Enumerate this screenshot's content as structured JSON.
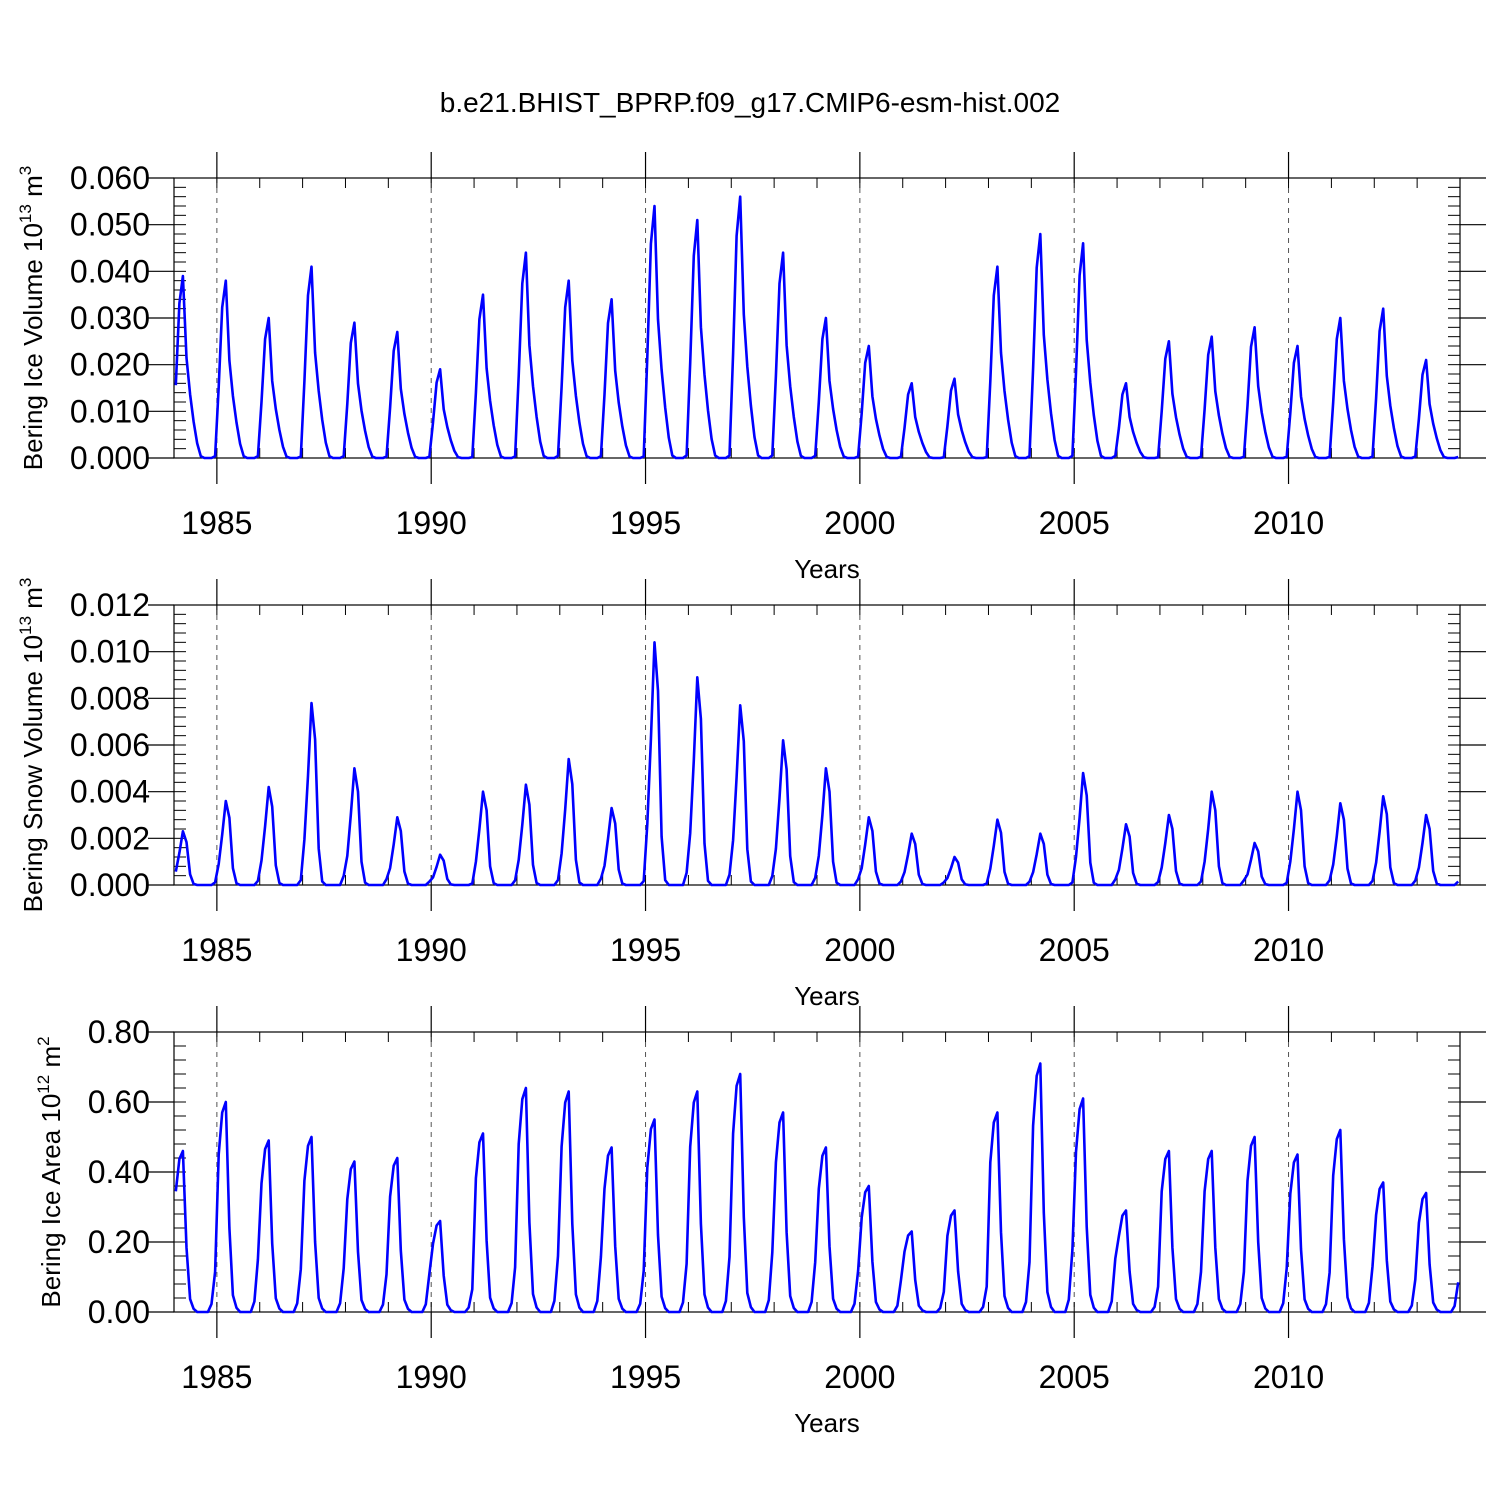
{
  "title": "b.e21.BHIST_BPRP.f09_g17.CMIP6-esm-hist.002",
  "colors": {
    "series": "#0000ff",
    "axis": "#000000",
    "refline": "#555555"
  },
  "chart_data": [
    {
      "type": "line",
      "ylabel": {
        "main": "Bering Ice Volume 10",
        "sup1": "13",
        "mid": " m",
        "sup2": "3"
      },
      "xlabel": "Years",
      "ylim": [
        0,
        0.06
      ],
      "yticks": [
        0,
        0.01,
        0.02,
        0.03,
        0.04,
        0.05,
        0.06
      ],
      "ytick_labels": [
        "0.000",
        "0.010",
        "0.020",
        "0.030",
        "0.040",
        "0.050",
        "0.060"
      ],
      "xlim": [
        1984.0,
        2014.0
      ],
      "xticks": [
        1985,
        1990,
        1995,
        2000,
        2005,
        2010
      ],
      "xtick_labels": [
        "1985",
        "1990",
        "1995",
        "2000",
        "2005",
        "2010"
      ],
      "peaks": [
        0.039,
        0.038,
        0.03,
        0.041,
        0.029,
        0.027,
        0.019,
        0.035,
        0.044,
        0.038,
        0.034,
        0.054,
        0.051,
        0.056,
        0.044,
        0.03,
        0.024,
        0.016,
        0.017,
        0.041,
        0.048,
        0.046,
        0.016,
        0.025,
        0.026,
        0.028,
        0.024,
        0.03,
        0.032,
        0.021
      ],
      "shape": [
        0.4,
        0.85,
        1.0,
        0.55,
        0.35,
        0.2,
        0.08,
        0.01,
        0,
        0,
        0,
        0.01
      ]
    },
    {
      "type": "line",
      "ylabel": {
        "main": "Bering Snow Volume 10",
        "sup1": "13",
        "mid": " m",
        "sup2": "3"
      },
      "xlabel": "Years",
      "ylim": [
        0,
        0.012
      ],
      "yticks": [
        0,
        0.002,
        0.004,
        0.006,
        0.008,
        0.01,
        0.012
      ],
      "ytick_labels": [
        "0.000",
        "0.002",
        "0.004",
        "0.006",
        "0.008",
        "0.010",
        "0.012"
      ],
      "xlim": [
        1984.0,
        2014.0
      ],
      "xticks": [
        1985,
        1990,
        1995,
        2000,
        2005,
        2010
      ],
      "xtick_labels": [
        "1985",
        "1990",
        "1995",
        "2000",
        "2005",
        "2010"
      ],
      "peaks": [
        0.0023,
        0.0036,
        0.0042,
        0.0078,
        0.005,
        0.0029,
        0.0013,
        0.004,
        0.0043,
        0.0054,
        0.0033,
        0.0104,
        0.0089,
        0.0077,
        0.0062,
        0.005,
        0.0029,
        0.0022,
        0.0012,
        0.0028,
        0.0022,
        0.0048,
        0.0026,
        0.003,
        0.004,
        0.0018,
        0.004,
        0.0035,
        0.0038,
        0.003
      ],
      "shape": [
        0.25,
        0.6,
        1.0,
        0.8,
        0.2,
        0.02,
        0,
        0,
        0,
        0,
        0,
        0.05
      ]
    },
    {
      "type": "line",
      "ylabel": {
        "main": "Bering Ice Area 10",
        "sup1": "12",
        "mid": " m",
        "sup2": "2"
      },
      "xlabel": "Years",
      "ylim": [
        0,
        0.8
      ],
      "yticks": [
        0,
        0.2,
        0.4,
        0.6,
        0.8
      ],
      "ytick_labels": [
        "0.00",
        "0.20",
        "0.40",
        "0.60",
        "0.80"
      ],
      "xlim": [
        1984.0,
        2014.0
      ],
      "xticks": [
        1985,
        1990,
        1995,
        2000,
        2005,
        2010
      ],
      "xtick_labels": [
        "1985",
        "1990",
        "1995",
        "2000",
        "2005",
        "2010"
      ],
      "peaks": [
        0.46,
        0.6,
        0.49,
        0.5,
        0.43,
        0.44,
        0.26,
        0.51,
        0.64,
        0.63,
        0.47,
        0.55,
        0.63,
        0.68,
        0.57,
        0.47,
        0.36,
        0.23,
        0.29,
        0.57,
        0.71,
        0.61,
        0.29,
        0.46,
        0.46,
        0.5,
        0.45,
        0.52,
        0.37,
        0.34
      ],
      "shape": [
        0.75,
        0.95,
        1.0,
        0.4,
        0.08,
        0.02,
        0,
        0,
        0,
        0,
        0.05,
        0.25
      ]
    }
  ]
}
